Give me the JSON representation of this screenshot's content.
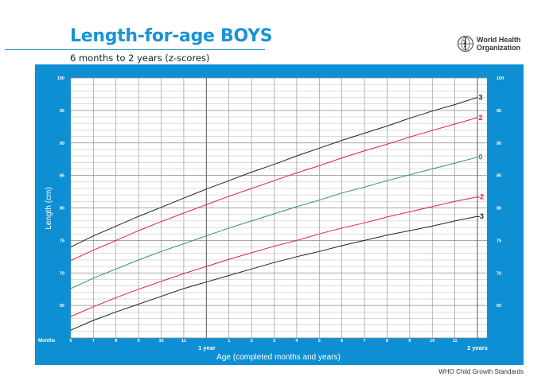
{
  "header": {
    "title": "Length-for-age BOYS",
    "subtitle": "6 months to 2 years (z-scores)",
    "org_name_line1": "World Health",
    "org_name_line2": "Organization",
    "logo_icon": "who-emblem-icon"
  },
  "footer": {
    "source": "WHO Child Growth Standards"
  },
  "axes": {
    "y_label": "Length (cm)",
    "x_label": "Age (completed months and years)",
    "x_months_label": "Months",
    "year1_label": "1 year",
    "year2_label": "2 years"
  },
  "colors": {
    "panel_blue": "#0e8fd3",
    "title_blue": "#1b93d6",
    "sd3": "#222222",
    "sd2": "#d6243f",
    "sd0": "#2a9a4a",
    "sdneg2": "#d6243f",
    "sdneg3": "#222222",
    "grid_minor": "#c8c8c8",
    "grid_major": "#8a8a8a"
  },
  "chart_data": {
    "type": "line",
    "title": "Length-for-age BOYS",
    "subtitle": "6 months to 2 years (z-scores)",
    "xlabel": "Age (completed months and years)",
    "ylabel": "Length (cm)",
    "xlim": [
      6,
      24
    ],
    "ylim": [
      60,
      100
    ],
    "x_tick_labels": [
      "6",
      "7",
      "8",
      "9",
      "10",
      "11",
      "1 year",
      "1",
      "2",
      "3",
      "4",
      "5",
      "6",
      "7",
      "8",
      "9",
      "10",
      "11",
      "2 years"
    ],
    "y_ticks": [
      65,
      70,
      75,
      80,
      85,
      90,
      95,
      100
    ],
    "grid": true,
    "legend_position": "right-end labels",
    "x": [
      6,
      7,
      8,
      9,
      10,
      11,
      12,
      13,
      14,
      15,
      16,
      17,
      18,
      19,
      20,
      21,
      22,
      23,
      24
    ],
    "series": [
      {
        "name": "3",
        "color": "#222222",
        "values": [
          74.0,
          75.7,
          77.2,
          78.7,
          80.1,
          81.5,
          82.9,
          84.2,
          85.5,
          86.7,
          88.0,
          89.2,
          90.4,
          91.5,
          92.6,
          93.8,
          94.9,
          95.9,
          97.0
        ]
      },
      {
        "name": "2",
        "color": "#d6243f",
        "values": [
          71.9,
          73.5,
          75.0,
          76.5,
          77.9,
          79.2,
          80.5,
          81.8,
          83.0,
          84.2,
          85.4,
          86.5,
          87.7,
          88.8,
          89.8,
          90.9,
          91.9,
          92.9,
          93.9
        ]
      },
      {
        "name": "0",
        "color": "#2a9a4a",
        "values": [
          67.6,
          69.2,
          70.6,
          72.0,
          73.3,
          74.5,
          75.7,
          76.9,
          78.0,
          79.1,
          80.2,
          81.2,
          82.3,
          83.2,
          84.2,
          85.1,
          86.0,
          86.9,
          87.8
        ]
      },
      {
        "name": "-2",
        "color": "#d6243f",
        "values": [
          63.3,
          64.8,
          66.2,
          67.5,
          68.7,
          69.9,
          71.0,
          72.1,
          73.1,
          74.1,
          75.0,
          76.0,
          76.9,
          77.7,
          78.6,
          79.4,
          80.2,
          81.0,
          81.7
        ]
      },
      {
        "name": "-3",
        "color": "#222222",
        "values": [
          61.2,
          62.7,
          64.0,
          65.2,
          66.4,
          67.6,
          68.6,
          69.6,
          70.6,
          71.6,
          72.5,
          73.3,
          74.2,
          75.0,
          75.8,
          76.5,
          77.2,
          78.0,
          78.7
        ]
      }
    ]
  }
}
